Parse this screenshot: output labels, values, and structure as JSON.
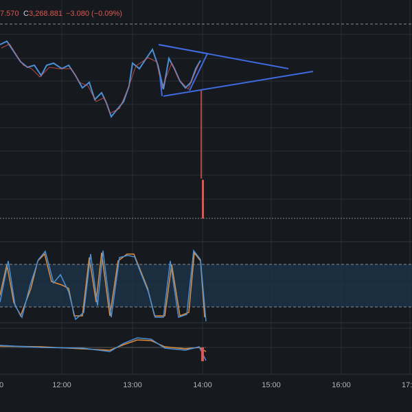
{
  "header": {
    "open_partial": "7.570",
    "close_label": "C",
    "close": "3,268.881",
    "change": "−3.080 (−0.09%)"
  },
  "time_axis": {
    "labels": [
      "0",
      "12:00",
      "13:00",
      "14:00",
      "15:00",
      "16:00",
      "17:"
    ]
  }
}
